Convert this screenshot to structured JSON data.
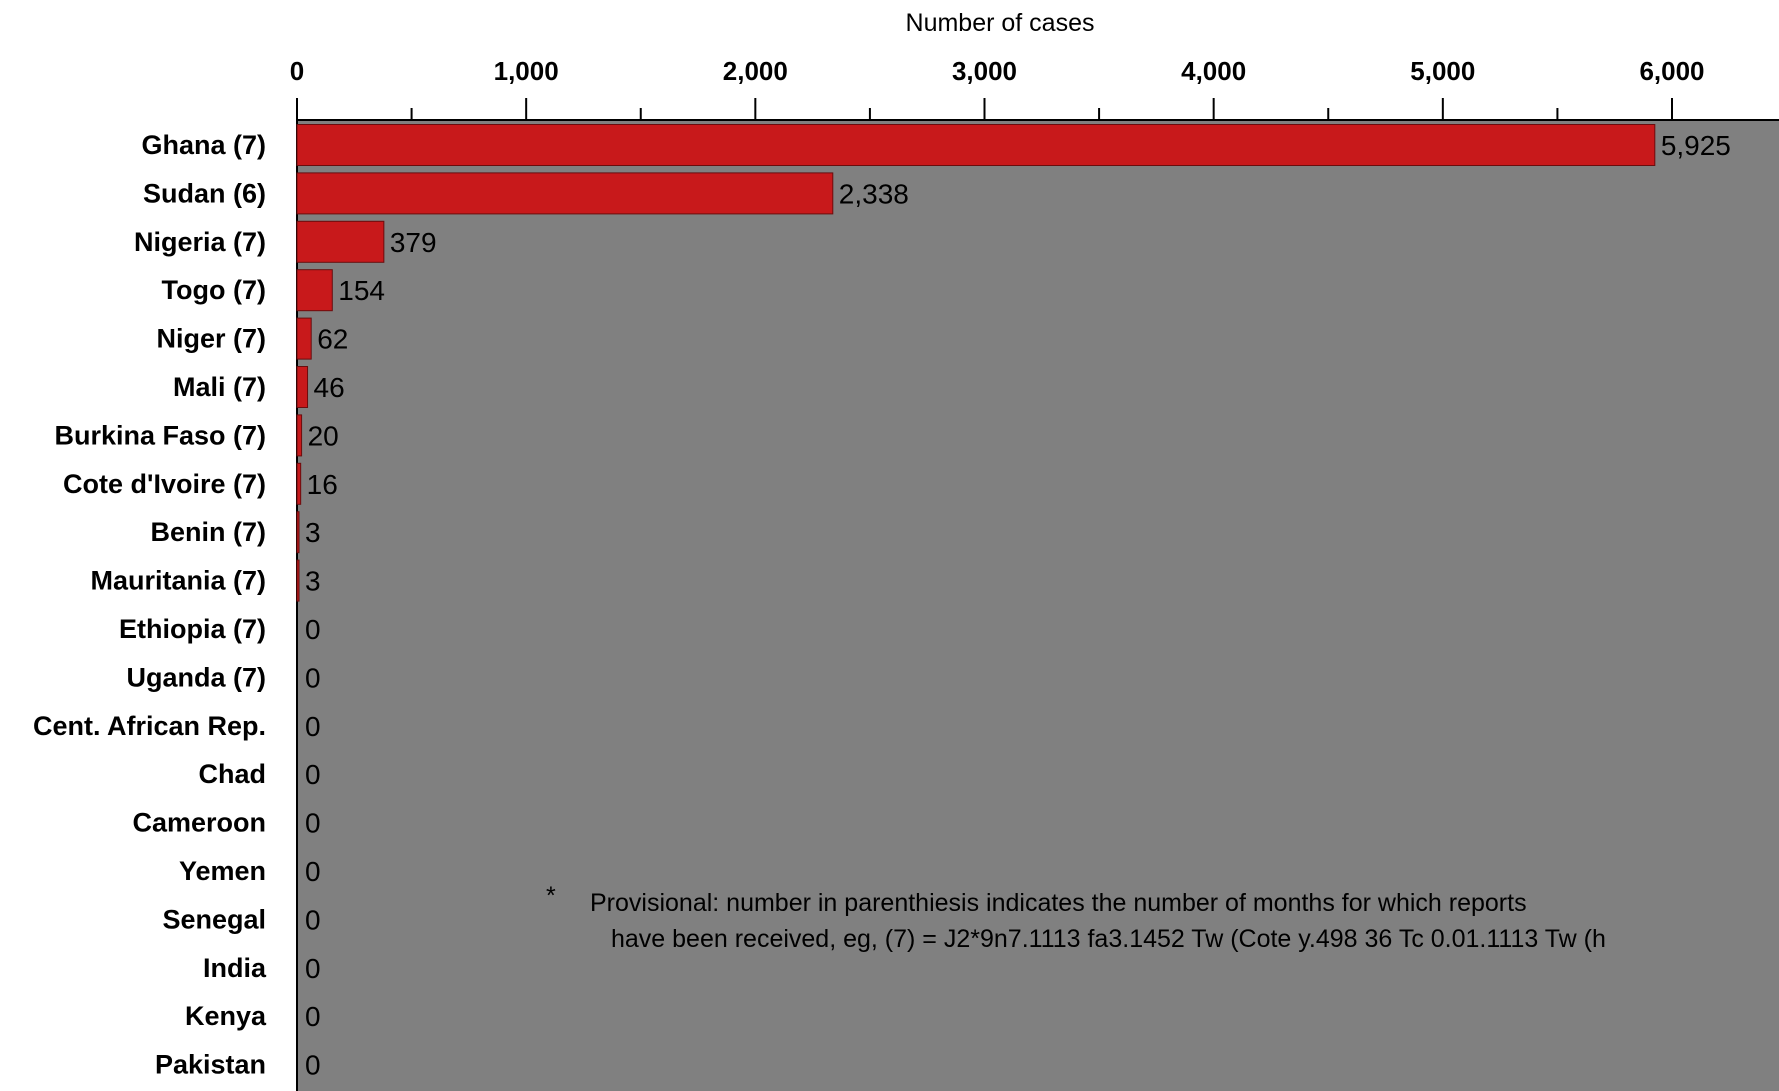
{
  "chart_data": {
    "type": "bar",
    "orientation": "horizontal",
    "xlabel": "Number of cases",
    "xlim": [
      0,
      6500
    ],
    "xticks": [
      0,
      1000,
      2000,
      3000,
      4000,
      5000,
      6000
    ],
    "xtick_labels": [
      "0",
      "1,000",
      "2,000",
      "3,000",
      "4,000",
      "5,000",
      "6,000"
    ],
    "categories": [
      "Ghana (7)",
      "Sudan (6)",
      "Nigeria (7)",
      "Togo (7)",
      "Niger (7)",
      "Mali (7)",
      "Burkina Faso (7)",
      "Cote d'Ivoire  (7)",
      "Benin (7)",
      "Mauritania (7)",
      "Ethiopia (7)",
      "Uganda (7)",
      "Cent. African Rep.",
      "Chad",
      "Cameroon",
      "Yemen",
      "Senegal",
      "India",
      "Kenya",
      "Pakistan"
    ],
    "values": [
      5925,
      2338,
      379,
      154,
      62,
      46,
      20,
      16,
      3,
      3,
      0,
      0,
      0,
      0,
      0,
      0,
      0,
      0,
      0,
      0
    ],
    "value_labels": [
      "5,925",
      "2,338",
      "379",
      "154",
      "62",
      "46",
      "20",
      "16",
      "3",
      "3",
      "0",
      "0",
      "0",
      "0",
      "0",
      "0",
      "0",
      "0",
      "0",
      "0"
    ],
    "bar_color": "#c8191b",
    "plot_background": "#808080",
    "grid": false,
    "annotation": {
      "marker": "*",
      "line1": "Provisional: number in parenthiesis indicates the number of months for which reports",
      "line2": "have been received, eg, (7) = J2*9n7.1113 fa3.1452  Tw (Cote y.498 36  Tc 0.01.1113  Tw (h"
    }
  }
}
